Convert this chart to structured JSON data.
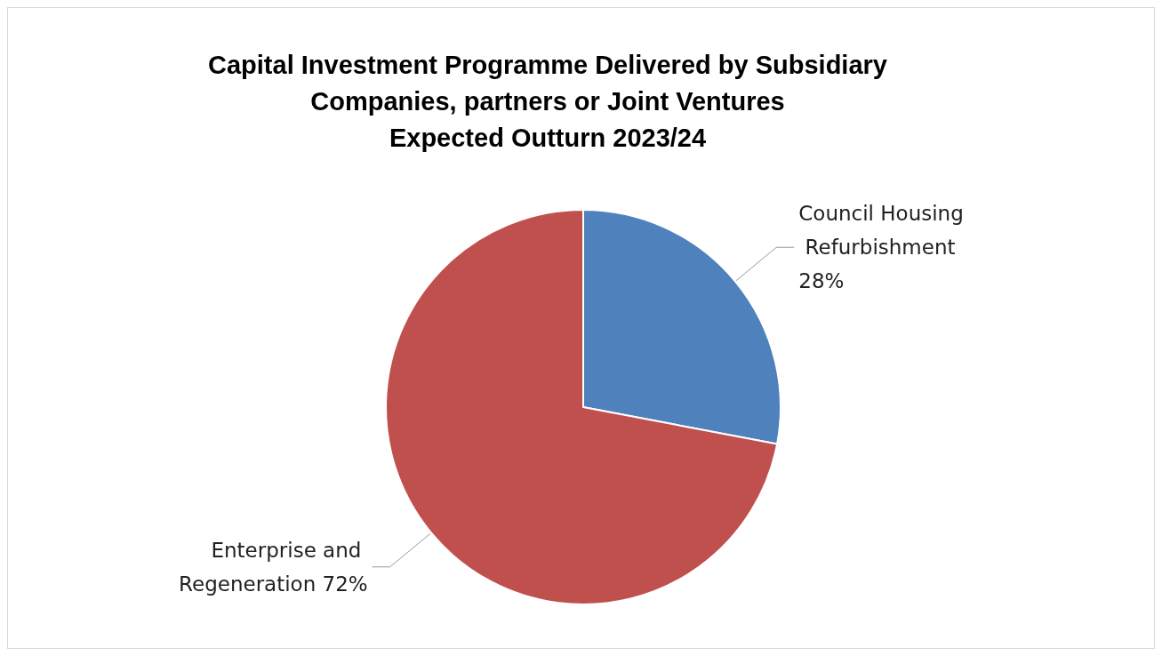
{
  "chart_data": {
    "type": "pie",
    "title": "Capital Investment Programme Delivered by Subsidiary\nCompanies, partners or Joint Ventures\nExpected Outturn 2023/24",
    "categories": [
      "Council Housing Refurbishment",
      "Enterprise and Regeneration"
    ],
    "values": [
      28,
      72
    ],
    "colors": [
      "#4f81bd",
      "#c0504d"
    ],
    "value_labels": [
      "28%",
      "72%"
    ],
    "legend": false
  }
}
